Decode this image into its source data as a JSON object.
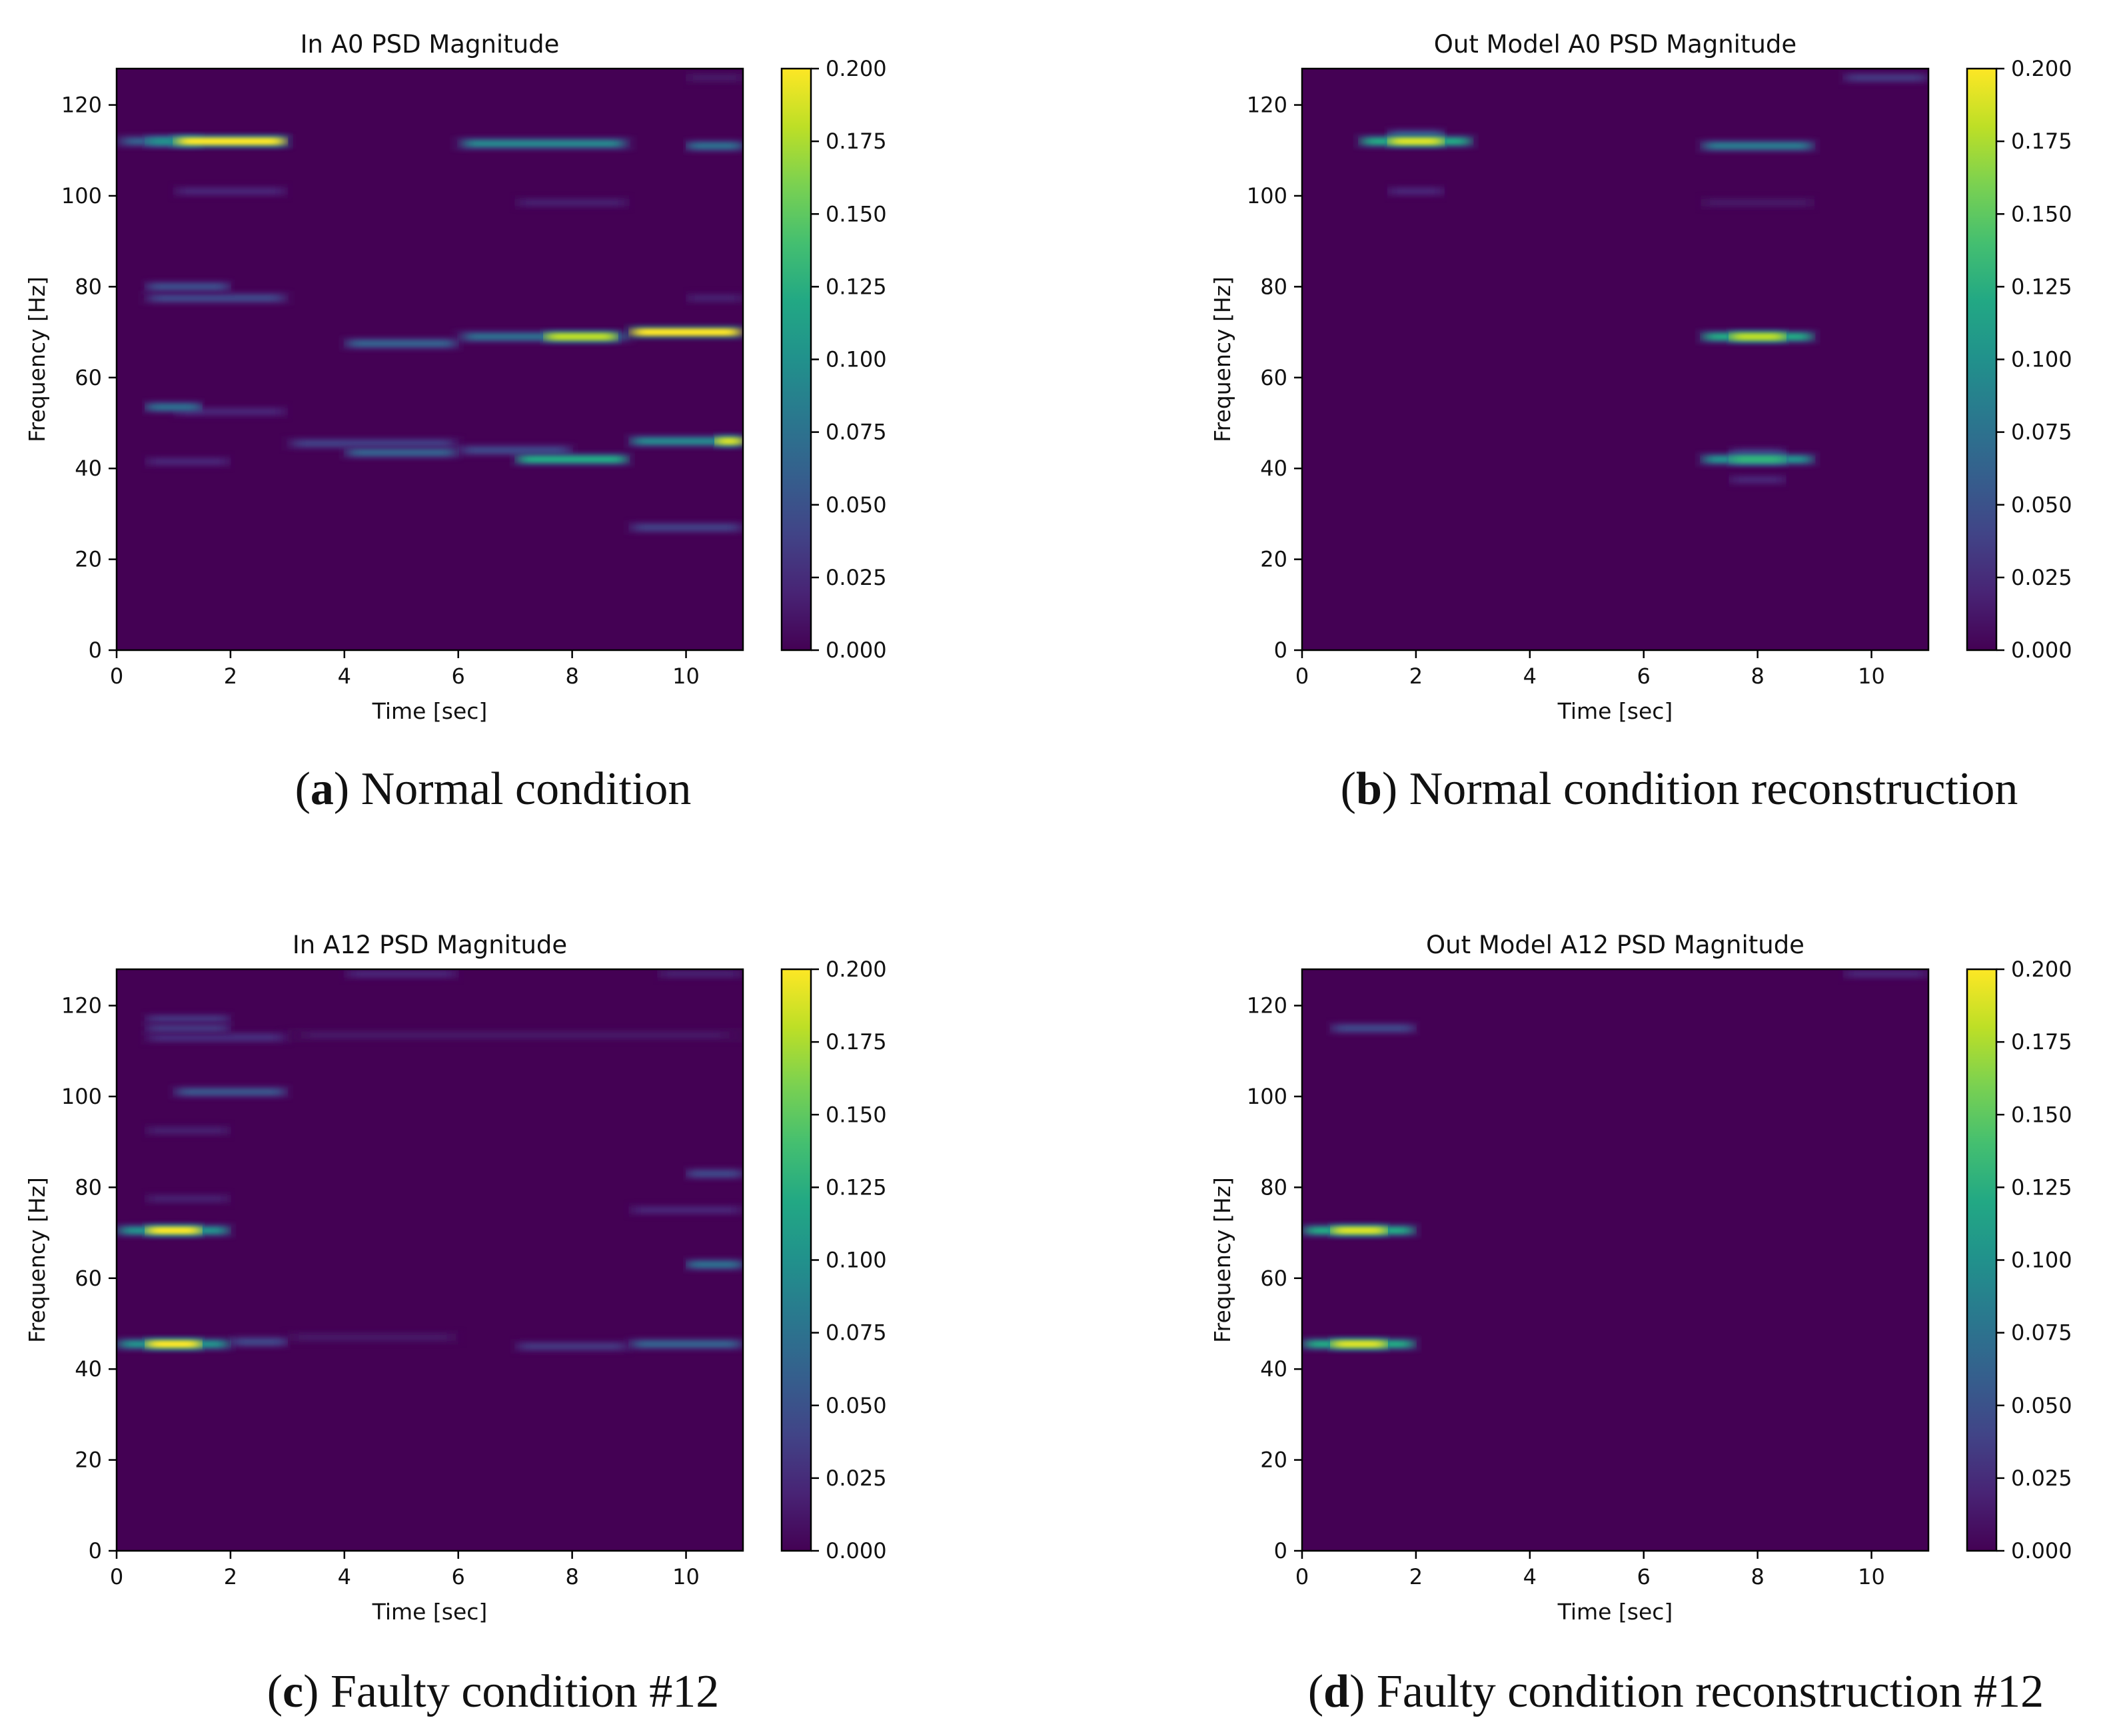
{
  "colors": {
    "viridis": [
      "#440154",
      "#482475",
      "#414487",
      "#355f8d",
      "#2a788e",
      "#21918c",
      "#22a884",
      "#44bf70",
      "#7ad151",
      "#bddf26",
      "#fde725"
    ],
    "text": "#111111",
    "axis": "#000000"
  },
  "captions": [
    {
      "letter": "a",
      "text": "Normal condition"
    },
    {
      "letter": "b",
      "text": "Normal condition reconstruction"
    },
    {
      "letter": "c",
      "text": "Faulty condition #12"
    },
    {
      "letter": "d",
      "text": "Faulty condition reconstruction #12"
    }
  ],
  "chart_data": [
    {
      "type": "heatmap",
      "title": "In A0  PSD Magnitude",
      "xlabel": "Time [sec]",
      "ylabel": "Frequency [Hz]",
      "xlim": [
        0,
        11
      ],
      "ylim": [
        0,
        128
      ],
      "xticks": [
        0,
        2,
        4,
        6,
        8,
        10
      ],
      "yticks": [
        0,
        20,
        40,
        60,
        80,
        100,
        120
      ],
      "colorbar": {
        "min": 0,
        "max": 0.2,
        "ticks": [
          "0.000",
          "0.025",
          "0.050",
          "0.075",
          "0.100",
          "0.125",
          "0.150",
          "0.175",
          "0.200"
        ]
      },
      "bands": [
        {
          "t0": 0,
          "t1": 3,
          "f": 112,
          "v": 0.06
        },
        {
          "t0": 1,
          "t1": 3,
          "f": 112,
          "v": 0.2
        },
        {
          "t0": 0.5,
          "t1": 1.5,
          "f": 112,
          "v": 0.1
        },
        {
          "t0": 6,
          "t1": 9,
          "f": 111.5,
          "v": 0.09
        },
        {
          "t0": 10,
          "t1": 11,
          "f": 111,
          "v": 0.07
        },
        {
          "t0": 1,
          "t1": 3,
          "f": 101,
          "v": 0.02
        },
        {
          "t0": 7,
          "t1": 9,
          "f": 98.5,
          "v": 0.015
        },
        {
          "t0": 0.5,
          "t1": 2,
          "f": 80,
          "v": 0.045
        },
        {
          "t0": 0.5,
          "t1": 3,
          "f": 77.5,
          "v": 0.04
        },
        {
          "t0": 10,
          "t1": 11,
          "f": 77.5,
          "v": 0.015
        },
        {
          "t0": 4,
          "t1": 6,
          "f": 67.5,
          "v": 0.06
        },
        {
          "t0": 6,
          "t1": 9,
          "f": 69,
          "v": 0.07
        },
        {
          "t0": 7.5,
          "t1": 8.8,
          "f": 69,
          "v": 0.18
        },
        {
          "t0": 9,
          "t1": 11,
          "f": 70,
          "v": 0.2
        },
        {
          "t0": 0.5,
          "t1": 1.5,
          "f": 53.5,
          "v": 0.07
        },
        {
          "t0": 1,
          "t1": 3,
          "f": 52.5,
          "v": 0.02
        },
        {
          "t0": 3,
          "t1": 6,
          "f": 45.5,
          "v": 0.035
        },
        {
          "t0": 4,
          "t1": 6,
          "f": 43.5,
          "v": 0.06
        },
        {
          "t0": 6,
          "t1": 8,
          "f": 44,
          "v": 0.04
        },
        {
          "t0": 7,
          "t1": 9,
          "f": 42,
          "v": 0.12
        },
        {
          "t0": 9,
          "t1": 11,
          "f": 46,
          "v": 0.09
        },
        {
          "t0": 10.5,
          "t1": 11,
          "f": 46,
          "v": 0.19
        },
        {
          "t0": 0.5,
          "t1": 2,
          "f": 41.5,
          "v": 0.02
        },
        {
          "t0": 9,
          "t1": 11,
          "f": 27,
          "v": 0.035
        },
        {
          "t0": 10,
          "t1": 11,
          "f": 126,
          "v": 0.01
        }
      ]
    },
    {
      "type": "heatmap",
      "title": "Out Model A0  PSD Magnitude",
      "xlabel": "Time [sec]",
      "ylabel": "Frequency [Hz]",
      "xlim": [
        0,
        11
      ],
      "ylim": [
        0,
        128
      ],
      "xticks": [
        0,
        2,
        4,
        6,
        8,
        10
      ],
      "yticks": [
        0,
        20,
        40,
        60,
        80,
        100,
        120
      ],
      "colorbar": {
        "min": 0,
        "max": 0.2,
        "ticks": [
          "0.000",
          "0.025",
          "0.050",
          "0.075",
          "0.100",
          "0.125",
          "0.150",
          "0.175",
          "0.200"
        ]
      },
      "bands": [
        {
          "t0": 1,
          "t1": 3,
          "f": 112,
          "v": 0.12
        },
        {
          "t0": 1.5,
          "t1": 2.5,
          "f": 112,
          "v": 0.19
        },
        {
          "t0": 1.5,
          "t1": 2.5,
          "f": 113.5,
          "v": 0.05
        },
        {
          "t0": 1.5,
          "t1": 2.5,
          "f": 101,
          "v": 0.02
        },
        {
          "t0": 7,
          "t1": 9,
          "f": 111,
          "v": 0.08
        },
        {
          "t0": 7,
          "t1": 9,
          "f": 98.5,
          "v": 0.01
        },
        {
          "t0": 7,
          "t1": 9,
          "f": 69,
          "v": 0.12
        },
        {
          "t0": 7.5,
          "t1": 8.5,
          "f": 69,
          "v": 0.18
        },
        {
          "t0": 7,
          "t1": 9,
          "f": 42,
          "v": 0.1
        },
        {
          "t0": 7.5,
          "t1": 8.5,
          "f": 42,
          "v": 0.13
        },
        {
          "t0": 7.5,
          "t1": 8.5,
          "f": 43.5,
          "v": 0.03
        },
        {
          "t0": 7.5,
          "t1": 8.5,
          "f": 37.5,
          "v": 0.02
        },
        {
          "t0": 9.5,
          "t1": 11,
          "f": 126,
          "v": 0.03
        }
      ]
    },
    {
      "type": "heatmap",
      "title": "In A12  PSD Magnitude",
      "xlabel": "Time [sec]",
      "ylabel": "Frequency [Hz]",
      "xlim": [
        0,
        11
      ],
      "ylim": [
        0,
        128
      ],
      "xticks": [
        0,
        2,
        4,
        6,
        8,
        10
      ],
      "yticks": [
        0,
        20,
        40,
        60,
        80,
        100,
        120
      ],
      "colorbar": {
        "min": 0,
        "max": 0.2,
        "ticks": [
          "0.000",
          "0.025",
          "0.050",
          "0.075",
          "0.100",
          "0.125",
          "0.150",
          "0.175",
          "0.200"
        ]
      },
      "bands": [
        {
          "t0": 0,
          "t1": 2,
          "f": 70.5,
          "v": 0.1
        },
        {
          "t0": 0.5,
          "t1": 1.5,
          "f": 70.5,
          "v": 0.2
        },
        {
          "t0": 0,
          "t1": 2,
          "f": 45.5,
          "v": 0.1
        },
        {
          "t0": 0.5,
          "t1": 1.5,
          "f": 45.5,
          "v": 0.2
        },
        {
          "t0": 2,
          "t1": 3,
          "f": 46,
          "v": 0.04
        },
        {
          "t0": 0.5,
          "t1": 2,
          "f": 117,
          "v": 0.03
        },
        {
          "t0": 0.5,
          "t1": 2,
          "f": 115,
          "v": 0.03
        },
        {
          "t0": 0.5,
          "t1": 3,
          "f": 113,
          "v": 0.025
        },
        {
          "t0": 1,
          "t1": 3,
          "f": 101,
          "v": 0.05
        },
        {
          "t0": 0.5,
          "t1": 2,
          "f": 92.5,
          "v": 0.015
        },
        {
          "t0": 0.5,
          "t1": 2,
          "f": 77.5,
          "v": 0.015
        },
        {
          "t0": 4,
          "t1": 6,
          "f": 127,
          "v": 0.02
        },
        {
          "t0": 3,
          "t1": 11,
          "f": 113.5,
          "v": 0.01
        },
        {
          "t0": 10,
          "t1": 11,
          "f": 83,
          "v": 0.04
        },
        {
          "t0": 9,
          "t1": 11,
          "f": 75,
          "v": 0.02
        },
        {
          "t0": 10,
          "t1": 11,
          "f": 63,
          "v": 0.07
        },
        {
          "t0": 9,
          "t1": 11,
          "f": 45.5,
          "v": 0.06
        },
        {
          "t0": 7,
          "t1": 9,
          "f": 45,
          "v": 0.03
        },
        {
          "t0": 3,
          "t1": 6,
          "f": 47,
          "v": 0.01
        },
        {
          "t0": 9.5,
          "t1": 11,
          "f": 127,
          "v": 0.015
        }
      ]
    },
    {
      "type": "heatmap",
      "title": "Out Model A12  PSD Magnitude",
      "xlabel": "Time [sec]",
      "ylabel": "Frequency [Hz]",
      "xlim": [
        0,
        11
      ],
      "ylim": [
        0,
        128
      ],
      "xticks": [
        0,
        2,
        4,
        6,
        8,
        10
      ],
      "yticks": [
        0,
        20,
        40,
        60,
        80,
        100,
        120
      ],
      "colorbar": {
        "min": 0,
        "max": 0.2,
        "ticks": [
          "0.000",
          "0.025",
          "0.050",
          "0.075",
          "0.100",
          "0.125",
          "0.150",
          "0.175",
          "0.200"
        ]
      },
      "bands": [
        {
          "t0": 0,
          "t1": 2,
          "f": 70.5,
          "v": 0.12
        },
        {
          "t0": 0.5,
          "t1": 1.5,
          "f": 70.5,
          "v": 0.19
        },
        {
          "t0": 0,
          "t1": 2,
          "f": 45.5,
          "v": 0.12
        },
        {
          "t0": 0.5,
          "t1": 1.5,
          "f": 45.5,
          "v": 0.19
        },
        {
          "t0": 0.5,
          "t1": 2,
          "f": 115,
          "v": 0.04
        },
        {
          "t0": 9.5,
          "t1": 11,
          "f": 127,
          "v": 0.02
        }
      ]
    }
  ]
}
